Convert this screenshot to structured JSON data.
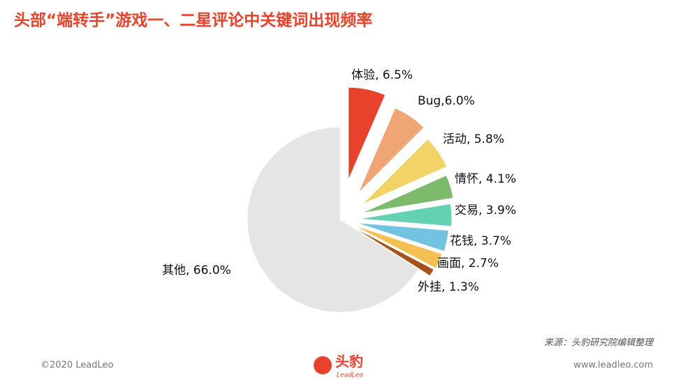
{
  "chart_data": {
    "type": "pie",
    "title": "头部“端转手”游戏一、二星评论中关键词出现频率",
    "values": [
      6.5,
      6.0,
      5.8,
      4.1,
      3.9,
      3.7,
      2.7,
      1.3,
      66.0
    ],
    "value_labels": [
      "体验, 6.5%",
      "Bug,6.0%",
      "活动, 5.8%",
      "情怀, 4.1%",
      "交易, 3.9%",
      "花钱, 3.7%",
      "画面, 2.7%",
      "外挂, 1.3%",
      "其他, 66.0%"
    ],
    "colors": [
      "#e8412c",
      "#f0a575",
      "#f3d365",
      "#7dba6b",
      "#62d2b3",
      "#72c2e2",
      "#f5c052",
      "#a4521c",
      "#e5e5e5"
    ],
    "source": "来源：头豹研究院编辑整理"
  },
  "footer": {
    "copyright": "©2020 LeadLeo",
    "logo": "头豹",
    "logo_sub": "LeadLeo",
    "website": "www.leadleo.com"
  }
}
